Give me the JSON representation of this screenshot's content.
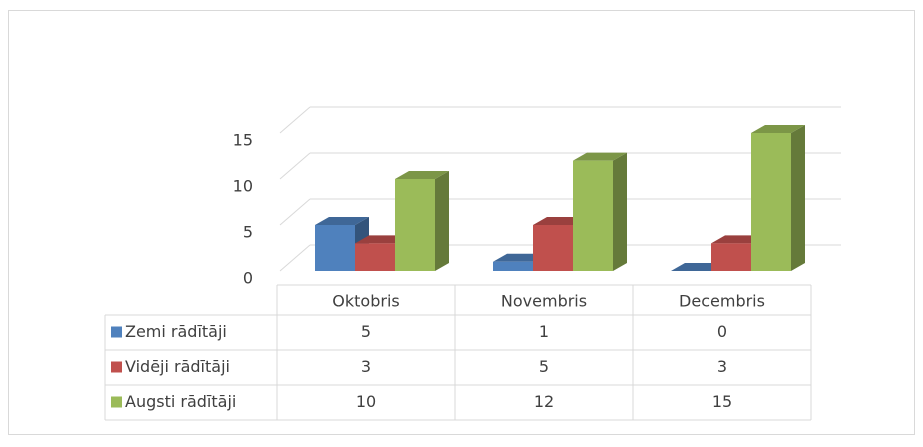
{
  "chart_data": {
    "type": "bar3d",
    "categories": [
      "Oktobris",
      "Novembris",
      "Decembris"
    ],
    "series": [
      {
        "name": "Zemi rādītāji",
        "color": "#4f81bd",
        "values": [
          5,
          1,
          0
        ]
      },
      {
        "name": "Vidēji rādītāji",
        "color": "#c0504d",
        "values": [
          3,
          5,
          3
        ]
      },
      {
        "name": "Augsti rādītāji",
        "color": "#9bbb59",
        "values": [
          10,
          12,
          15
        ]
      }
    ],
    "ylim": [
      0,
      15
    ],
    "yticks": [
      0,
      5,
      10,
      15
    ],
    "grid": true,
    "data_table": true
  }
}
